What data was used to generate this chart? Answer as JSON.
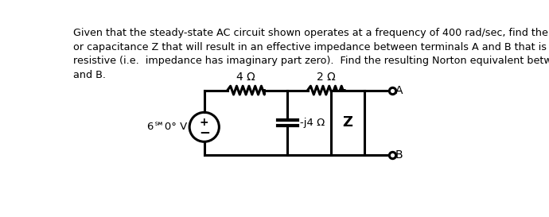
{
  "bg_color": "#ffffff",
  "text_color": "#000000",
  "line_color": "#000000",
  "font_size_text": 9.2,
  "resistor1_label": "4 Ω",
  "resistor2_label": "2 Ω",
  "capacitor_label": "-j4 Ω",
  "z_label": "Z",
  "source_label": "6℠0° V",
  "terminal_A": "A",
  "terminal_B": "B",
  "plus_label": "+",
  "minus_label": "−",
  "title_line1": "Given that the steady-state AC circuit shown operates at a frequency of 400 rad/sec, find the inductance",
  "title_line2": "or capacitance Z that will result in an effective impedance between terminals A and B that is purely",
  "title_line3": "resistive (i.e.  impedance has imaginary part zero).  Find the resulting Norton equivalent between A",
  "title_line4": "and B."
}
